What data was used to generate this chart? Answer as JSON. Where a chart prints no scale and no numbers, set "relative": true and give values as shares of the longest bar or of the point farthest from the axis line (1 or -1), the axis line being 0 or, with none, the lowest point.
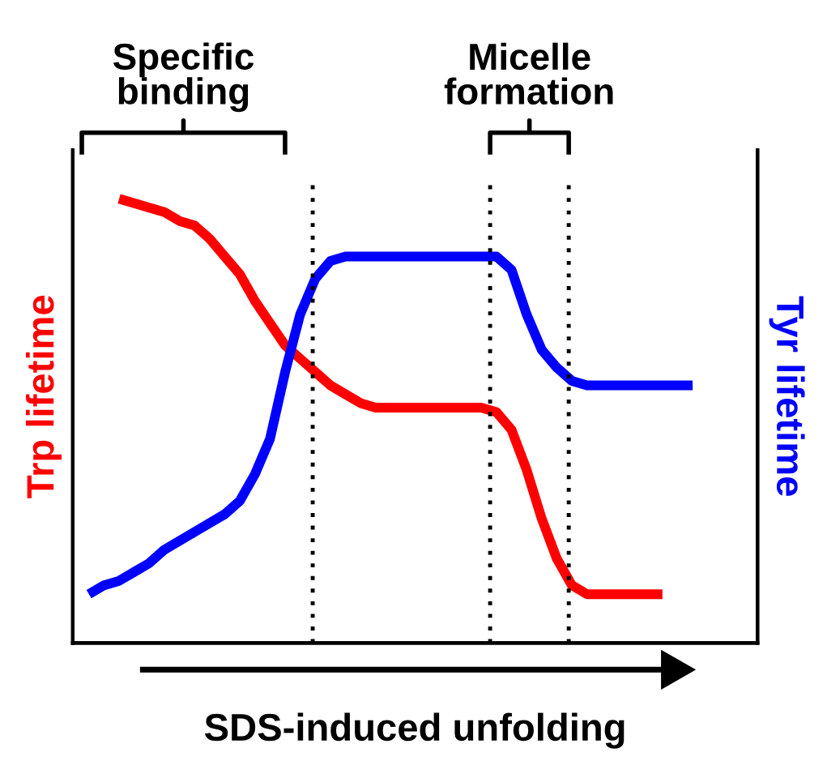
{
  "chart_data": {
    "type": "line",
    "relative": true,
    "marker": "none",
    "line_style": "solid",
    "xlabel": "SDS-induced unfolding",
    "ylabel": "Trp lifetime",
    "y2label": "Tyr lifetime",
    "categories": [
      null,
      null,
      null,
      null,
      null,
      null,
      null,
      null,
      null,
      null,
      null,
      null,
      null,
      null,
      null,
      null,
      null,
      null,
      null,
      null,
      null,
      null,
      null,
      null,
      null,
      null,
      null,
      null,
      null,
      null,
      null,
      null,
      null,
      null,
      null,
      null,
      null,
      null,
      null,
      null,
      null
    ],
    "series": [
      {
        "color": "#ff0000",
        "values": [
          null,
          null,
          1.0,
          0.99,
          0.98,
          0.97,
          0.95,
          0.94,
          0.91,
          0.87,
          0.83,
          0.77,
          0.72,
          0.67,
          0.64,
          0.61,
          0.58,
          0.56,
          0.54,
          0.53,
          0.53,
          0.53,
          0.53,
          0.53,
          0.53,
          0.53,
          0.53,
          0.52,
          0.48,
          0.39,
          0.28,
          0.19,
          0.13,
          0.11,
          0.11,
          0.11,
          0.11,
          0.11,
          0.11,
          null,
          null
        ]
      },
      {
        "color": "#0000ff",
        "values": [
          0.11,
          0.13,
          0.14,
          0.16,
          0.18,
          0.21,
          0.23,
          0.25,
          0.27,
          0.29,
          0.32,
          0.38,
          0.46,
          0.61,
          0.74,
          0.82,
          0.86,
          0.87,
          0.87,
          0.87,
          0.87,
          0.87,
          0.87,
          0.87,
          0.87,
          0.87,
          0.87,
          0.87,
          0.84,
          0.74,
          0.66,
          0.62,
          0.59,
          0.58,
          0.58,
          0.58,
          0.58,
          0.58,
          0.58,
          0.58,
          0.58
        ]
      }
    ],
    "annotations": [
      "Specific\nbinding",
      "Micelle\nformation"
    ]
  }
}
